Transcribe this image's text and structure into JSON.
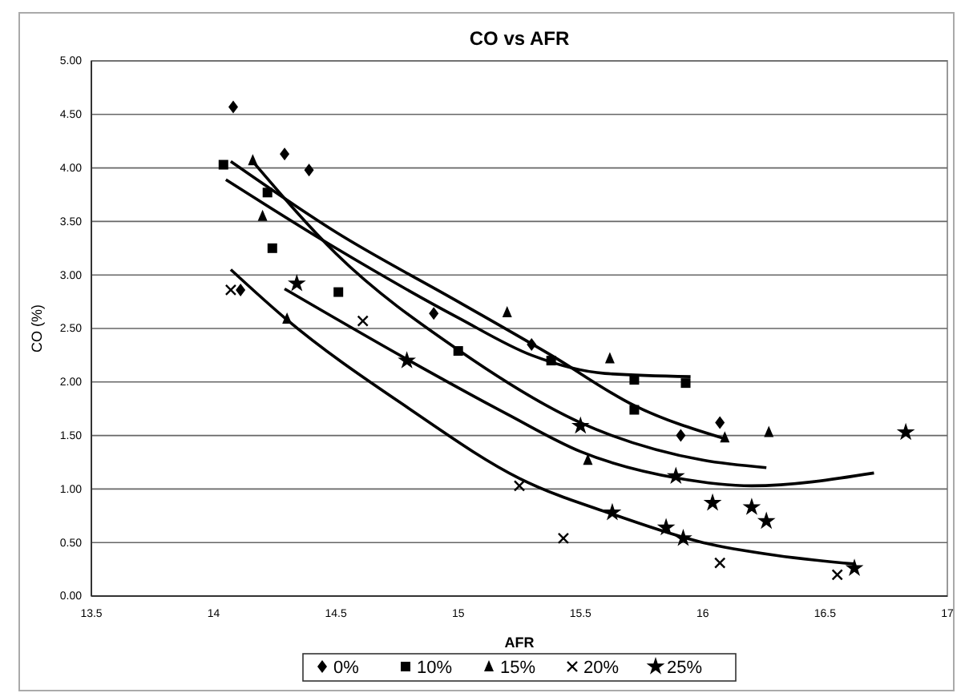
{
  "chart_data": {
    "type": "scatter",
    "title": "CO vs AFR",
    "xlabel": "AFR",
    "ylabel": "CO (%)",
    "xlim": [
      13.5,
      17
    ],
    "xticks": [
      13.5,
      14,
      14.5,
      15,
      15.5,
      16,
      16.5,
      17
    ],
    "ylim": [
      0,
      5
    ],
    "yticks": [
      {
        "value": 0,
        "label": "0.00"
      },
      {
        "value": 0.5,
        "label": "0.50"
      },
      {
        "value": 1,
        "label": "1.00"
      },
      {
        "value": 1.5,
        "label": "1.50"
      },
      {
        "value": 2,
        "label": "2.00"
      },
      {
        "value": 2.5,
        "label": "2.50"
      },
      {
        "value": 3,
        "label": "3.00"
      },
      {
        "value": 3.5,
        "label": "3.50"
      },
      {
        "value": 4,
        "label": "4.00"
      },
      {
        "value": 4.5,
        "label": "4.50"
      },
      {
        "value": 5,
        "label": "5.00"
      }
    ],
    "grid": "y",
    "legend": "bottom",
    "series": [
      {
        "name": "0%",
        "color": "#000000",
        "marker": "diamond",
        "x": [
          14.08,
          14.29,
          14.39,
          14.11,
          14.9,
          15.3,
          15.91,
          16.07
        ],
        "values": [
          4.57,
          4.13,
          3.98,
          2.86,
          2.64,
          2.35,
          1.5,
          1.62
        ]
      },
      {
        "name": "10%",
        "color": "#000000",
        "marker": "square",
        "x": [
          14.04,
          14.22,
          14.24,
          14.51,
          15.0,
          15.38,
          15.72,
          15.93,
          15.72
        ],
        "values": [
          4.03,
          3.77,
          3.25,
          2.84,
          2.29,
          2.2,
          2.02,
          1.99,
          1.74
        ]
      },
      {
        "name": "15%",
        "color": "#000000",
        "marker": "triangle",
        "x": [
          14.16,
          14.2,
          14.3,
          15.2,
          15.62,
          16.09,
          16.27,
          15.53
        ],
        "values": [
          4.07,
          3.55,
          2.59,
          2.65,
          2.22,
          1.48,
          1.53,
          1.27
        ]
      },
      {
        "name": "20%",
        "color": "#000000",
        "marker": "cross",
        "x": [
          14.07,
          14.61,
          15.25,
          15.43,
          16.07,
          16.55
        ],
        "values": [
          2.86,
          2.57,
          1.03,
          0.54,
          0.31,
          0.2
        ]
      },
      {
        "name": "25%",
        "color": "#000000",
        "marker": "star",
        "x": [
          14.34,
          14.79,
          15.5,
          15.89,
          16.04,
          16.2,
          16.26,
          16.83,
          15.63,
          15.85,
          15.92,
          16.62
        ],
        "values": [
          2.92,
          2.2,
          1.59,
          1.12,
          0.87,
          0.83,
          0.7,
          1.53,
          0.78,
          0.64,
          0.54,
          0.26
        ]
      },
      {
        "type": "line",
        "color": "#000000",
        "marker": "none",
        "x": [
          14.05,
          14.5,
          15.0,
          15.3,
          15.6,
          15.95
        ],
        "values": [
          3.89,
          3.25,
          2.6,
          2.25,
          2.08,
          2.05
        ]
      },
      {
        "type": "line",
        "color": "#000000",
        "marker": "none",
        "x": [
          14.07,
          14.5,
          15.0,
          15.38,
          15.72,
          16.09
        ],
        "values": [
          4.06,
          3.4,
          2.75,
          2.25,
          1.78,
          1.47
        ]
      },
      {
        "type": "line",
        "color": "#000000",
        "marker": "none",
        "x": [
          14.16,
          14.5,
          15.0,
          15.5,
          16.0,
          16.26
        ],
        "values": [
          4.06,
          3.2,
          2.3,
          1.62,
          1.27,
          1.2
        ]
      },
      {
        "type": "line",
        "color": "#000000",
        "marker": "none",
        "x": [
          14.29,
          14.8,
          15.2,
          15.5,
          15.9,
          16.2,
          16.7
        ],
        "values": [
          2.87,
          2.2,
          1.7,
          1.35,
          1.1,
          1.03,
          1.15
        ]
      },
      {
        "type": "line",
        "color": "#000000",
        "marker": "none",
        "x": [
          14.07,
          14.29,
          14.8,
          15.25,
          15.65,
          16.0,
          16.3,
          16.62
        ],
        "values": [
          3.05,
          2.6,
          1.75,
          1.1,
          0.75,
          0.5,
          0.38,
          0.3
        ]
      }
    ]
  }
}
